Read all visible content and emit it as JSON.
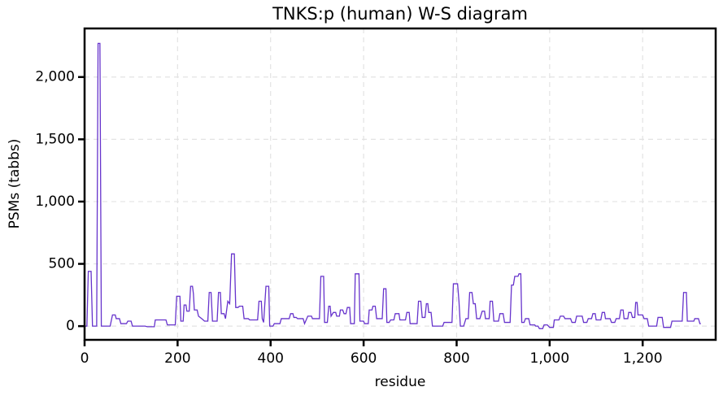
{
  "chart_data": {
    "type": "line",
    "title": "TNKS:p (human) W-S diagram",
    "xlabel": "residue",
    "ylabel": "PSMs (tabbs)",
    "color": "#6633cc",
    "grid": true,
    "xlim": [
      0,
      1357
    ],
    "ylim": [
      -110,
      2390
    ],
    "xticks": [
      0,
      200,
      400,
      600,
      800,
      {
        "value": 1000,
        "label": "1,000"
      },
      {
        "value": 1200,
        "label": "1,200"
      }
    ],
    "yticks": [
      0,
      500,
      {
        "value": 1000,
        "label": "1,000"
      },
      {
        "value": 1500,
        "label": "1,500"
      },
      {
        "value": 2000,
        "label": "2,000"
      }
    ],
    "x": [
      0,
      5,
      8,
      14,
      17,
      26,
      29,
      33,
      36,
      55,
      60,
      66,
      68,
      75,
      78,
      90,
      93,
      100,
      103,
      130,
      135,
      150,
      152,
      175,
      178,
      195,
      198,
      205,
      207,
      212,
      214,
      218,
      220,
      225,
      228,
      232,
      234,
      236,
      242,
      245,
      252,
      258,
      265,
      268,
      272,
      275,
      285,
      288,
      292,
      294,
      300,
      303,
      308,
      312,
      316,
      322,
      325,
      330,
      333,
      340,
      343,
      352,
      355,
      372,
      375,
      380,
      382,
      385,
      390,
      396,
      398,
      405,
      408,
      420,
      423,
      440,
      443,
      448,
      450,
      455,
      458,
      470,
      473,
      480,
      488,
      490,
      505,
      508,
      514,
      516,
      522,
      525,
      528,
      530,
      535,
      540,
      542,
      548,
      550,
      555,
      558,
      562,
      565,
      570,
      572,
      580,
      582,
      590,
      592,
      600,
      602,
      610,
      612,
      618,
      620,
      625,
      628,
      640,
      643,
      648,
      650,
      655,
      658,
      665,
      668,
      676,
      678,
      690,
      693,
      698,
      700,
      715,
      718,
      723,
      726,
      732,
      735,
      738,
      740,
      745,
      748,
      770,
      773,
      790,
      793,
      802,
      805,
      808,
      815,
      820,
      825,
      828,
      833,
      836,
      840,
      843,
      850,
      855,
      860,
      862,
      870,
      872,
      877,
      880,
      890,
      893,
      900,
      903,
      915,
      918,
      922,
      925,
      932,
      934,
      938,
      940,
      945,
      948,
      955,
      958,
      968,
      970,
      975,
      978,
      985,
      988,
      995,
      1000,
      1008,
      1010,
      1020,
      1023,
      1030,
      1033,
      1045,
      1048,
      1055,
      1058,
      1070,
      1073,
      1080,
      1083,
      1090,
      1093,
      1098,
      1100,
      1110,
      1113,
      1118,
      1120,
      1130,
      1133,
      1140,
      1143,
      1150,
      1153,
      1158,
      1160,
      1168,
      1170,
      1175,
      1178,
      1183,
      1185,
      1188,
      1190,
      1200,
      1203,
      1210,
      1213,
      1230,
      1233,
      1242,
      1245,
      1260,
      1263,
      1285,
      1288,
      1294,
      1296,
      1310,
      1312,
      1320,
      1323,
      1325
    ],
    "values": [
      0,
      0,
      440,
      440,
      0,
      0,
      2270,
      2270,
      0,
      0,
      90,
      90,
      60,
      60,
      20,
      20,
      40,
      40,
      0,
      0,
      -5,
      -5,
      50,
      50,
      10,
      10,
      240,
      240,
      40,
      40,
      170,
      170,
      120,
      120,
      320,
      320,
      260,
      130,
      130,
      80,
      60,
      40,
      40,
      270,
      270,
      40,
      40,
      270,
      270,
      100,
      100,
      60,
      200,
      180,
      580,
      580,
      150,
      150,
      160,
      160,
      60,
      60,
      50,
      50,
      200,
      200,
      60,
      30,
      320,
      320,
      0,
      0,
      20,
      20,
      60,
      60,
      100,
      100,
      70,
      70,
      60,
      60,
      20,
      80,
      80,
      60,
      60,
      400,
      400,
      30,
      30,
      160,
      160,
      80,
      110,
      110,
      80,
      80,
      130,
      130,
      100,
      100,
      150,
      150,
      20,
      20,
      420,
      420,
      40,
      40,
      20,
      20,
      130,
      130,
      160,
      160,
      60,
      60,
      300,
      300,
      30,
      30,
      50,
      50,
      100,
      100,
      50,
      50,
      110,
      110,
      20,
      20,
      200,
      200,
      70,
      70,
      180,
      180,
      110,
      110,
      0,
      0,
      30,
      30,
      340,
      340,
      200,
      0,
      0,
      60,
      60,
      270,
      270,
      180,
      180,
      60,
      60,
      120,
      120,
      60,
      60,
      200,
      200,
      40,
      40,
      100,
      100,
      30,
      30,
      330,
      330,
      400,
      400,
      420,
      420,
      30,
      30,
      60,
      60,
      10,
      10,
      0,
      0,
      -20,
      -20,
      10,
      10,
      -10,
      -10,
      50,
      50,
      80,
      80,
      60,
      60,
      30,
      30,
      80,
      80,
      30,
      30,
      60,
      60,
      100,
      100,
      50,
      50,
      110,
      110,
      60,
      60,
      30,
      30,
      60,
      60,
      130,
      130,
      60,
      60,
      110,
      110,
      70,
      70,
      190,
      190,
      90,
      90,
      60,
      60,
      0,
      0,
      70,
      70,
      -10,
      -10,
      40,
      40,
      270,
      270,
      40,
      40,
      60,
      60,
      20,
      20
    ]
  }
}
